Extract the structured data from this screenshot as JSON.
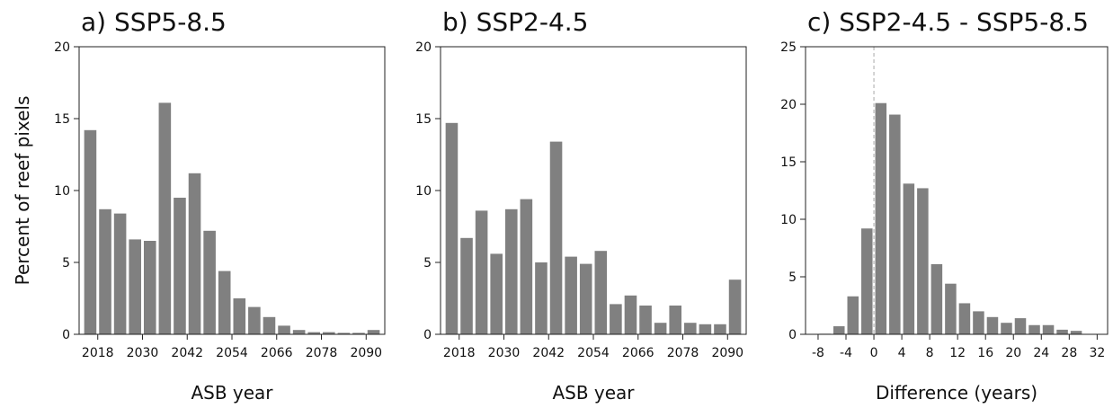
{
  "chart_data": [
    {
      "type": "histogram",
      "title": "a) SSP5-8.5",
      "y_label": "Percent of reef pixels",
      "x_label": "ASB year",
      "color": "#808080",
      "bins": [
        2014,
        2018,
        2022,
        2026,
        2030,
        2034,
        2038,
        2042,
        2046,
        2050,
        2054,
        2058,
        2062,
        2066,
        2070,
        2074,
        2078,
        2082,
        2086,
        2090,
        2094
      ],
      "values": [
        14.2,
        8.7,
        8.4,
        6.6,
        6.5,
        16.1,
        9.5,
        11.2,
        7.2,
        4.4,
        2.5,
        1.9,
        1.2,
        0.6,
        0.3,
        0.15,
        0.15,
        0.1,
        0.1,
        0.3
      ],
      "xlim": [
        2013,
        2095
      ],
      "xticks": [
        2018,
        2030,
        2042,
        2054,
        2066,
        2078,
        2090
      ],
      "ylim": [
        0,
        20
      ],
      "yticks": [
        0,
        5,
        10,
        15,
        20
      ]
    },
    {
      "type": "histogram",
      "title": "b) SSP2-4.5",
      "x_label": "ASB year",
      "color": "#808080",
      "bins": [
        2014,
        2018,
        2022,
        2026,
        2030,
        2034,
        2038,
        2042,
        2046,
        2050,
        2054,
        2058,
        2062,
        2066,
        2070,
        2074,
        2078,
        2082,
        2086,
        2090,
        2094
      ],
      "values": [
        14.7,
        6.7,
        8.6,
        5.6,
        8.7,
        9.4,
        5.0,
        13.4,
        5.4,
        4.9,
        5.8,
        2.1,
        2.7,
        2.0,
        0.8,
        2.0,
        0.8,
        0.7,
        0.7,
        3.8
      ],
      "xlim": [
        2013,
        2095
      ],
      "xticks": [
        2018,
        2030,
        2042,
        2054,
        2066,
        2078,
        2090
      ],
      "ylim": [
        0,
        20
      ],
      "yticks": [
        0,
        5,
        10,
        15,
        20
      ]
    },
    {
      "type": "histogram",
      "title": "c) SSP2-4.5 - SSP5-8.5",
      "x_label": "Difference (years)",
      "color": "#808080",
      "bins": [
        -8,
        -6,
        -4,
        -2,
        0,
        2,
        4,
        6,
        8,
        10,
        12,
        14,
        16,
        18,
        20,
        22,
        24,
        26,
        28,
        30
      ],
      "values": [
        0.05,
        0.7,
        3.3,
        9.2,
        20.1,
        19.1,
        13.1,
        12.7,
        6.1,
        4.4,
        2.7,
        2.0,
        1.5,
        1.0,
        1.4,
        0.8,
        0.8,
        0.4,
        0.3
      ],
      "xlim": [
        -9.8,
        33.5
      ],
      "xticks": [
        -8,
        -4,
        0,
        4,
        8,
        12,
        16,
        20,
        24,
        28,
        32
      ],
      "ylim": [
        0,
        25
      ],
      "yticks": [
        0,
        5,
        10,
        15,
        20,
        25
      ],
      "vline": 0
    }
  ]
}
